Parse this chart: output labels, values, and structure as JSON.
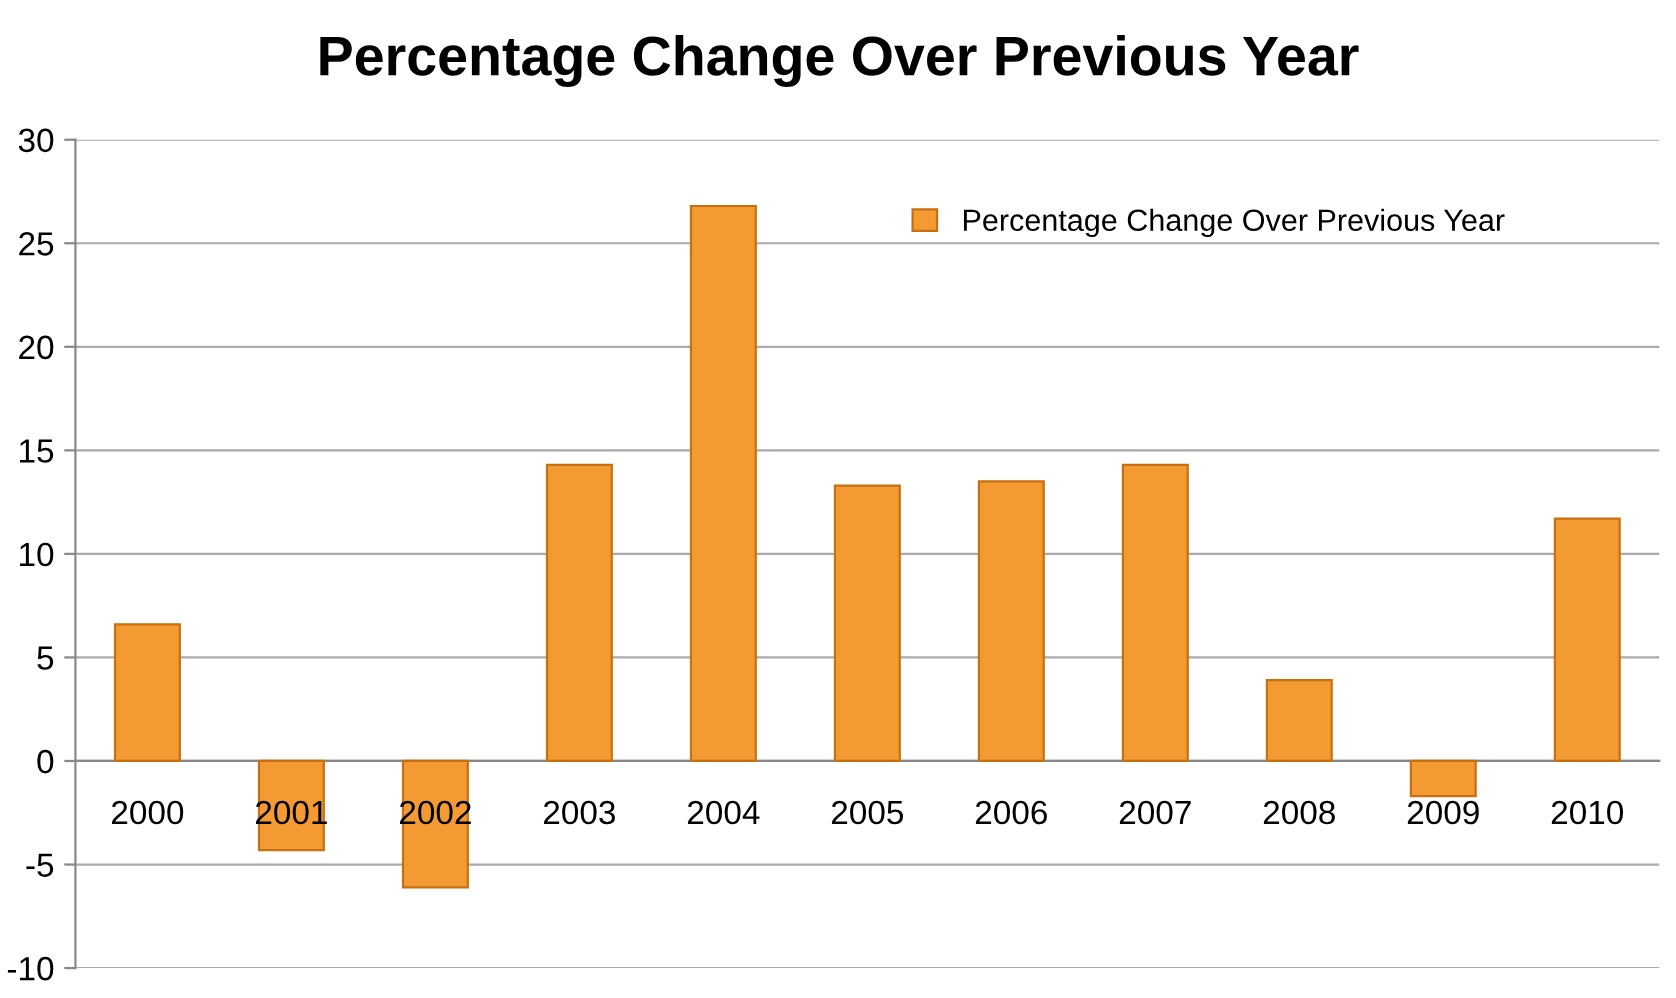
{
  "chart_data": {
    "type": "bar",
    "title": "Percentage Change Over Previous Year",
    "categories": [
      "2000",
      "2001",
      "2002",
      "2003",
      "2004",
      "2005",
      "2006",
      "2007",
      "2008",
      "2009",
      "2010"
    ],
    "series": [
      {
        "name": "Percentage Change Over Previous Year",
        "color": "#f39a33",
        "values": [
          6.6,
          -4.3,
          -6.1,
          14.3,
          26.8,
          13.3,
          13.5,
          14.3,
          3.9,
          -1.7,
          11.7
        ]
      }
    ],
    "ylim": [
      -10,
      30
    ],
    "yticks": [
      -10,
      -5,
      0,
      5,
      10,
      15,
      20,
      25,
      30
    ],
    "grid": "y",
    "legend": "top right"
  }
}
